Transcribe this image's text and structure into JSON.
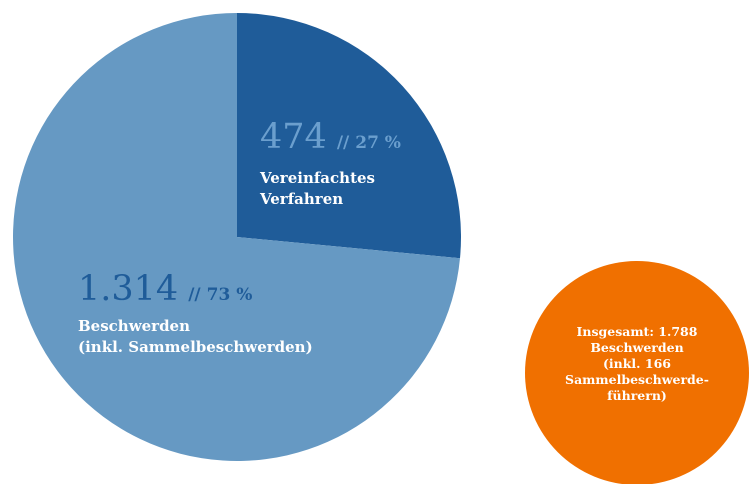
{
  "chart_data": {
    "type": "pie",
    "categories": [
      [
        "Vereinfachtes",
        "Verfahren"
      ],
      [
        "Beschwerden",
        "(inkl. Sammelbeschwerden)"
      ]
    ],
    "values": [
      474,
      1314
    ],
    "value_labels": [
      "474",
      "1.314"
    ],
    "separator": "//",
    "percent_labels": [
      "27 %",
      "73 %"
    ],
    "colors": [
      "#1f5c99",
      "#6699c3"
    ],
    "label_colors": [
      "#6b9fce",
      "#1f5c99"
    ],
    "annotation": {
      "color": "#f07000",
      "lines": [
        "Insgesamt: 1.788",
        "Beschwerden",
        "(inkl. 166",
        "Sammelbeschwerde-",
        "führern)"
      ]
    }
  }
}
